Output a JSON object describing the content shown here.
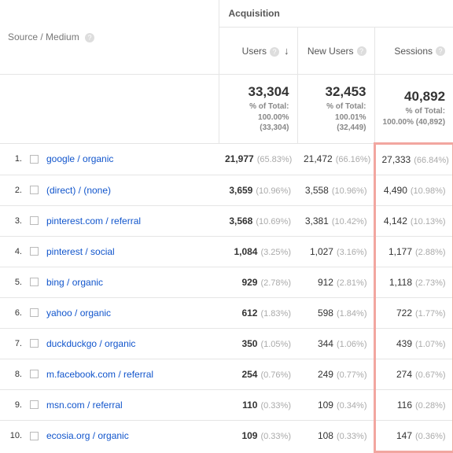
{
  "dim_header": "Source / Medium",
  "group_header": "Acquisition",
  "metrics": [
    {
      "label": "Users",
      "sorted": true
    },
    {
      "label": "New Users",
      "sorted": false
    },
    {
      "label": "Sessions",
      "sorted": false
    }
  ],
  "totals": [
    {
      "value": "33,304",
      "pct": "100.00%",
      "base": "33,304"
    },
    {
      "value": "32,453",
      "pct": "100.01%",
      "base": "32,449"
    },
    {
      "value": "40,892",
      "pct": "100.00%",
      "base": "40,892"
    }
  ],
  "totals_label": "% of Total:",
  "highlight_col": 2,
  "rows": [
    {
      "idx": "1.",
      "source": "google / organic",
      "vals": [
        {
          "n": "21,977",
          "p": "(65.83%)"
        },
        {
          "n": "21,472",
          "p": "(66.16%)"
        },
        {
          "n": "27,333",
          "p": "(66.84%)"
        }
      ]
    },
    {
      "idx": "2.",
      "source": "(direct) / (none)",
      "vals": [
        {
          "n": "3,659",
          "p": "(10.96%)"
        },
        {
          "n": "3,558",
          "p": "(10.96%)"
        },
        {
          "n": "4,490",
          "p": "(10.98%)"
        }
      ]
    },
    {
      "idx": "3.",
      "source": "pinterest.com / referral",
      "vals": [
        {
          "n": "3,568",
          "p": "(10.69%)"
        },
        {
          "n": "3,381",
          "p": "(10.42%)"
        },
        {
          "n": "4,142",
          "p": "(10.13%)"
        }
      ]
    },
    {
      "idx": "4.",
      "source": "pinterest / social",
      "vals": [
        {
          "n": "1,084",
          "p": "(3.25%)"
        },
        {
          "n": "1,027",
          "p": "(3.16%)"
        },
        {
          "n": "1,177",
          "p": "(2.88%)"
        }
      ]
    },
    {
      "idx": "5.",
      "source": "bing / organic",
      "vals": [
        {
          "n": "929",
          "p": "(2.78%)"
        },
        {
          "n": "912",
          "p": "(2.81%)"
        },
        {
          "n": "1,118",
          "p": "(2.73%)"
        }
      ]
    },
    {
      "idx": "6.",
      "source": "yahoo / organic",
      "vals": [
        {
          "n": "612",
          "p": "(1.83%)"
        },
        {
          "n": "598",
          "p": "(1.84%)"
        },
        {
          "n": "722",
          "p": "(1.77%)"
        }
      ]
    },
    {
      "idx": "7.",
      "source": "duckduckgo / organic",
      "vals": [
        {
          "n": "350",
          "p": "(1.05%)"
        },
        {
          "n": "344",
          "p": "(1.06%)"
        },
        {
          "n": "439",
          "p": "(1.07%)"
        }
      ]
    },
    {
      "idx": "8.",
      "source": "m.facebook.com / referral",
      "vals": [
        {
          "n": "254",
          "p": "(0.76%)"
        },
        {
          "n": "249",
          "p": "(0.77%)"
        },
        {
          "n": "274",
          "p": "(0.67%)"
        }
      ]
    },
    {
      "idx": "9.",
      "source": "msn.com / referral",
      "vals": [
        {
          "n": "110",
          "p": "(0.33%)"
        },
        {
          "n": "109",
          "p": "(0.34%)"
        },
        {
          "n": "116",
          "p": "(0.28%)"
        }
      ]
    },
    {
      "idx": "10.",
      "source": "ecosia.org / organic",
      "vals": [
        {
          "n": "109",
          "p": "(0.33%)"
        },
        {
          "n": "108",
          "p": "(0.33%)"
        },
        {
          "n": "147",
          "p": "(0.36%)"
        }
      ]
    }
  ]
}
